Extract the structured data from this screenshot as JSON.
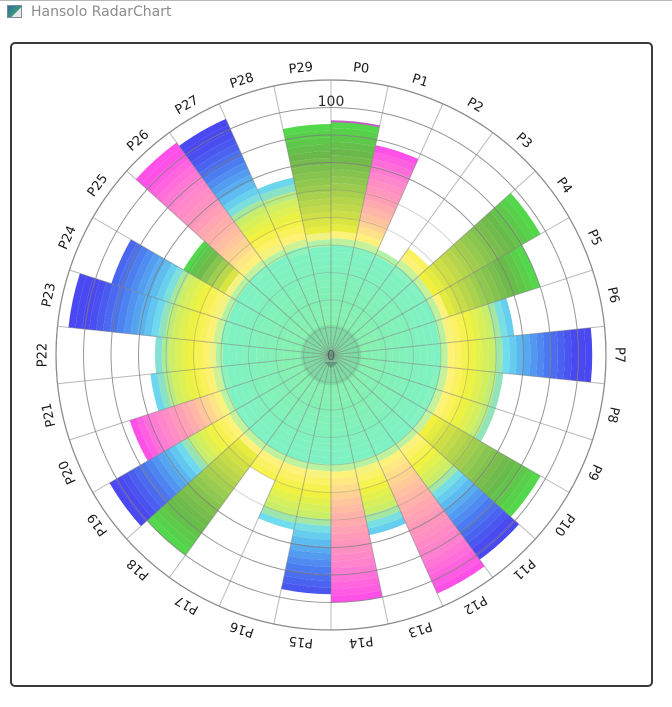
{
  "window": {
    "title": "Hansolo RadarChart",
    "icon": "app-window-icon"
  },
  "chart_data": {
    "type": "polar-bar",
    "title": "",
    "categories": [
      "P0",
      "P1",
      "P2",
      "P3",
      "P4",
      "P5",
      "P6",
      "P7",
      "P8",
      "P9",
      "P10",
      "P11",
      "P12",
      "P13",
      "P14",
      "P15",
      "P16",
      "P17",
      "P18",
      "P19",
      "P20",
      "P21",
      "P22",
      "P23",
      "P24",
      "P25",
      "P26",
      "P27",
      "P28",
      "P29"
    ],
    "values": [
      85,
      78,
      42,
      48,
      88,
      80,
      67,
      95,
      63,
      63,
      88,
      92,
      95,
      67,
      90,
      87,
      65,
      50,
      90,
      93,
      77,
      66,
      64,
      96,
      84,
      62,
      93,
      94,
      66,
      84
    ],
    "scale": {
      "min": 0,
      "max": 100,
      "min_label": "0",
      "max_label": "100",
      "gridlines": 10
    },
    "grid": true,
    "legend": "none",
    "gradient_stops": [
      {
        "value": 0,
        "color": "#88f0a4"
      },
      {
        "value": 40,
        "color": "#7ff2c4"
      },
      {
        "value": 45,
        "color": "#fff27a"
      },
      {
        "value": 52,
        "color": "#f2f23c"
      },
      {
        "value": 60,
        "color": "#c9ee6a"
      },
      {
        "value": 65,
        "color": "#70ddee"
      },
      {
        "value": 70,
        "color": "#5ab8f0"
      },
      {
        "value": 80,
        "color": "#4a78f0"
      },
      {
        "value": 90,
        "color": "#4a48f0"
      }
    ],
    "alt_gradient_warm": [
      "#fff27a",
      "#ffc0a0",
      "#ff9ab8",
      "#ff80d0",
      "#ff50e8"
    ],
    "alt_gradient_green": [
      "#f2f23c",
      "#c0d84a",
      "#8fc850",
      "#6ab84a",
      "#52d84a"
    ]
  }
}
